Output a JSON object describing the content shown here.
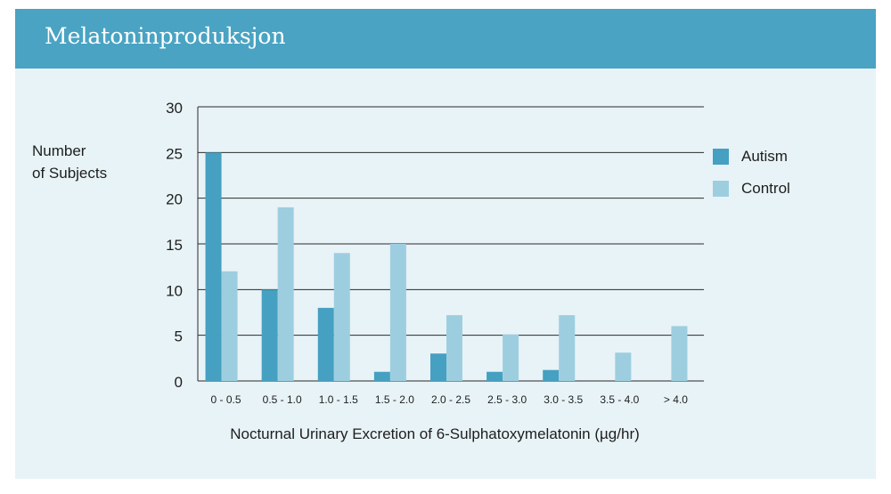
{
  "header": {
    "title": "Melatoninproduksjon"
  },
  "chart_data": {
    "type": "bar",
    "xlabel": "Nocturnal Urinary Excretion of 6-Sulphatoxymelatonin (µg/hr)",
    "ylabel": "Number\nof Subjects",
    "ylim": [
      0,
      30
    ],
    "yticks": [
      0,
      5,
      10,
      15,
      20,
      25,
      30
    ],
    "grid": true,
    "legend_position": "right",
    "categories": [
      "0 - 0.5",
      "0.5 - 1.0",
      "1.0 - 1.5",
      "1.5 - 2.0",
      "2.0 - 2.5",
      "2.5 - 3.0",
      "3.0 - 3.5",
      "3.5 - 4.0",
      "> 4.0"
    ],
    "series": [
      {
        "name": "Autism",
        "color": "#45a0c1",
        "values": [
          25,
          10,
          8,
          1,
          3,
          1,
          1.2,
          0,
          0
        ]
      },
      {
        "name": "Control",
        "color": "#9dcee0",
        "values": [
          12,
          19,
          14,
          15,
          7.2,
          5.1,
          7.2,
          3.1,
          6
        ]
      }
    ]
  }
}
